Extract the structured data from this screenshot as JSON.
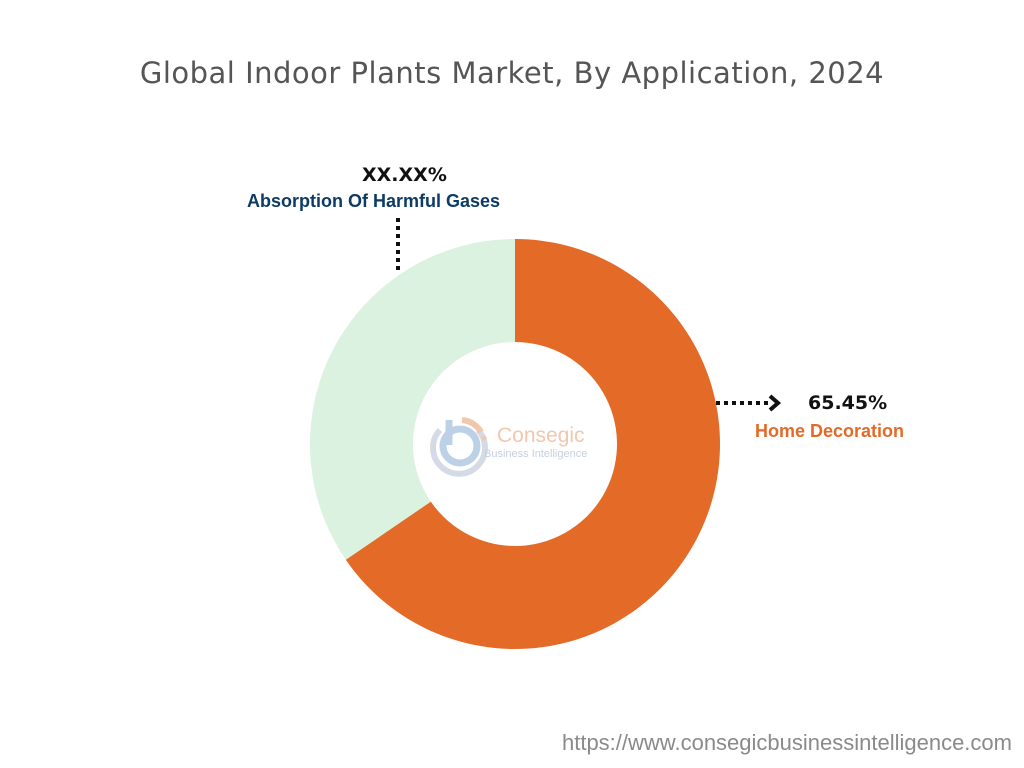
{
  "chart_data": {
    "type": "pie",
    "donut": true,
    "title": "Global Indoor Plants Market, By Application, 2024",
    "slices": [
      {
        "name": "Home Decoration",
        "value": 65.45,
        "label": "65.45%",
        "color": "#E36A27"
      },
      {
        "name": "Absorption Of Harmful Gases",
        "value": 34.55,
        "label": "XX.XX%",
        "color": "#DAF2DF"
      }
    ],
    "start_angle": "top",
    "direction": "clockwise"
  },
  "label_colors": {
    "home": "#E36A27",
    "absorption": "#0D3B66"
  },
  "logo": {
    "line1": "Consegic",
    "line2": "Business Intelligence"
  },
  "footer_url": "https://www.consegicbusinessintelligence.com"
}
